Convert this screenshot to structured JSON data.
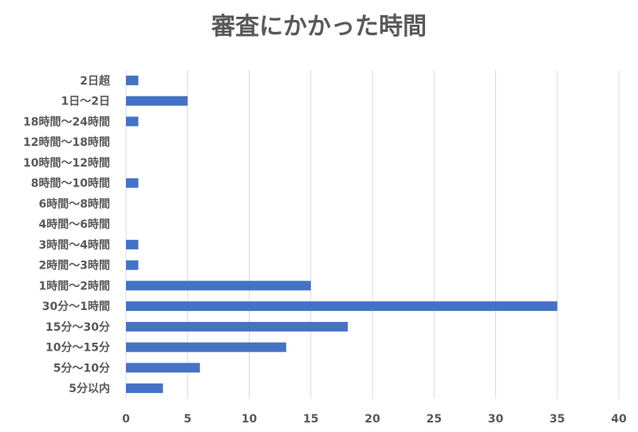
{
  "title": "審査にかかった時間",
  "chart_data": {
    "type": "bar",
    "orientation": "horizontal",
    "title": "審査にかかった時間",
    "categories": [
      "5分以内",
      "5分〜10分",
      "10分〜15分",
      "15分〜30分",
      "30分〜1時間",
      "1時間〜2時間",
      "2時間〜3時間",
      "3時間〜4時間",
      "4時間〜6時間",
      "6時間〜8時間",
      "8時間〜10時間",
      "10時間〜12時間",
      "12時間〜18時間",
      "18時間〜24時間",
      "1日〜2日",
      "2日超"
    ],
    "values": [
      3,
      6,
      13,
      18,
      35,
      15,
      1,
      1,
      0,
      0,
      1,
      0,
      0,
      1,
      5,
      1
    ],
    "xlim": [
      0,
      40
    ],
    "xticks": [
      0,
      5,
      10,
      15,
      20,
      25,
      30,
      35,
      40
    ],
    "grid": true,
    "bar_color": "#4472C4"
  }
}
